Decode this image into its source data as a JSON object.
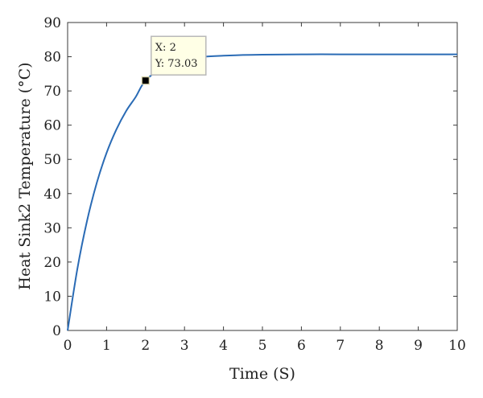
{
  "chart_data": {
    "type": "line",
    "title": "",
    "xlabel": "Time (S)",
    "ylabel": "Heat Sink2 Temperature (°C)",
    "xlim": [
      0,
      10
    ],
    "ylim": [
      0,
      90
    ],
    "xticks": [
      0,
      1,
      2,
      3,
      4,
      5,
      6,
      7,
      8,
      9,
      10
    ],
    "yticks": [
      0,
      10,
      20,
      30,
      40,
      50,
      60,
      70,
      80,
      90
    ],
    "grid": false,
    "series": [
      {
        "color": "#2a6bb5",
        "x": [
          0,
          0.25,
          0.5,
          0.75,
          1,
          1.25,
          1.5,
          1.75,
          2,
          2.5,
          3,
          3.5,
          4,
          4.5,
          5,
          6,
          7,
          8,
          9,
          10
        ],
        "y": [
          0,
          18.0,
          32.1,
          43.2,
          51.9,
          58.7,
          64.1,
          68.3,
          73.03,
          77.4,
          79.3,
          80.0,
          80.3,
          80.5,
          80.6,
          80.7,
          80.7,
          80.7,
          80.7,
          80.7
        ]
      }
    ],
    "datatip": {
      "x": 2,
      "y": 73.03,
      "x_text": "X: 2",
      "y_text": "Y: 73.03"
    }
  }
}
